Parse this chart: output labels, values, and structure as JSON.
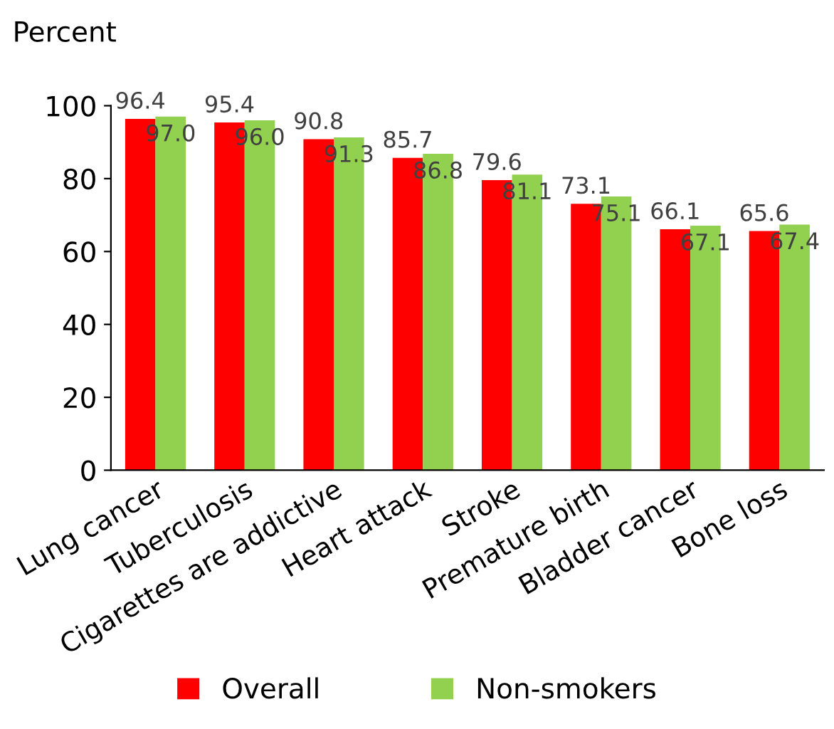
{
  "chart_data": {
    "type": "bar",
    "ylabel": "Percent",
    "categories": [
      "Lung cancer",
      "Tuberculosis",
      "Cigarettes are addictive",
      "Heart attack",
      "Stroke",
      "Premature birth",
      "Bladder cancer",
      "Bone loss"
    ],
    "series": [
      {
        "name": "Overall",
        "color": "#ff0000",
        "values": [
          96.4,
          95.4,
          90.8,
          85.7,
          79.6,
          73.1,
          66.1,
          65.6
        ],
        "value_labels": [
          "96.4",
          "95.4",
          "90.8",
          "85.7",
          "79.6",
          "73.1",
          "66.1",
          "65.6"
        ]
      },
      {
        "name": "Non-smokers",
        "color": "#92d050",
        "values": [
          97.0,
          96.0,
          91.3,
          86.8,
          81.1,
          75.1,
          67.1,
          67.4
        ],
        "value_labels": [
          "97.0",
          "96.0",
          "91.3",
          "86.8",
          "81.1",
          "75.1",
          "67.1",
          "67.4"
        ]
      }
    ],
    "ylim": [
      0,
      100
    ],
    "yticks": [
      0,
      20,
      40,
      60,
      80,
      100
    ],
    "grid": false,
    "legend": "bottom"
  }
}
